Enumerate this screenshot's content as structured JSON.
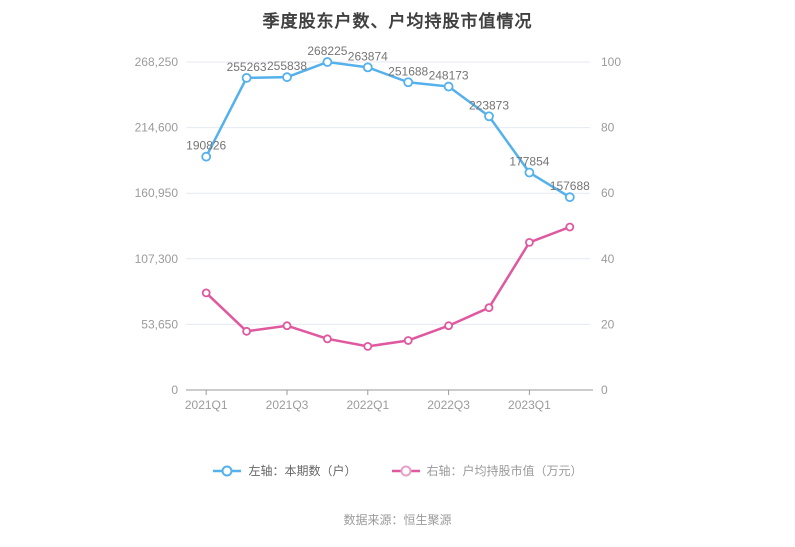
{
  "title": "季度股东户数、户均持股市值情况",
  "footer": "数据来源：恒生聚源",
  "legend": [
    {
      "label": "左轴：本期数（户）",
      "color": "#54b1ec"
    },
    {
      "label": "右轴：户均持股市值（万元）",
      "color": "#e0589f"
    }
  ],
  "chart_data": {
    "type": "line",
    "title": "季度股东户数、户均持股市值情况",
    "num_points": 10,
    "x_labels": [
      "2021Q1",
      "2021Q3",
      "2022Q1",
      "2022Q3",
      "2023Q1"
    ],
    "x_label_positions": [
      0,
      2,
      4,
      6,
      8
    ],
    "left_axis": {
      "ticks": [
        "0",
        "53,650",
        "107,300",
        "160,950",
        "214,600",
        "268,250"
      ],
      "min": 0,
      "max": 268250
    },
    "right_axis": {
      "ticks": [
        "0",
        "20",
        "40",
        "60",
        "80",
        "100"
      ],
      "min": 0,
      "max": 100
    },
    "grid": true,
    "legend_position": "bottom",
    "series": [
      {
        "name": "左轴：本期数（户）",
        "axis": "left",
        "color": "#54b1ec",
        "show_labels": true,
        "values": [
          190826,
          255263,
          255838,
          268225,
          263874,
          251688,
          248173,
          223873,
          177854,
          157688
        ]
      },
      {
        "name": "右轴：户均持股市值（万元）",
        "axis": "right",
        "color": "#e0589f",
        "show_labels": false,
        "values": [
          29.6,
          17.9,
          19.6,
          15.6,
          13.3,
          15.1,
          19.6,
          25.1,
          45.0,
          49.7
        ]
      }
    ]
  }
}
